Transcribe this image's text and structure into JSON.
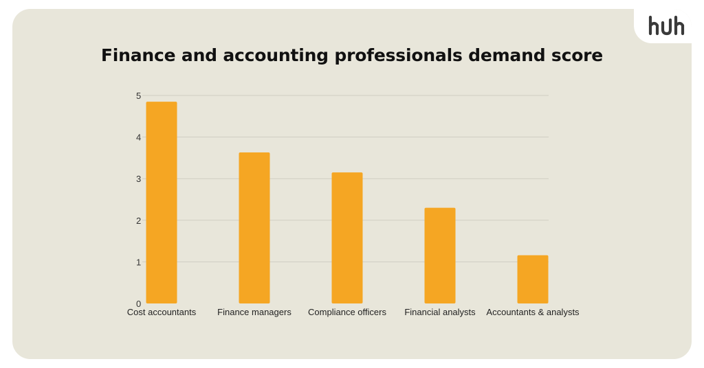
{
  "brand": {
    "logo_text": "hJh"
  },
  "colors": {
    "card_background": "#e8e6da",
    "bar": "#f5a623",
    "grid": "#cfcdc2",
    "title": "#111111"
  },
  "chart_data": {
    "type": "bar",
    "title": "Finance and accounting professionals demand score",
    "xlabel": "",
    "ylabel": "",
    "categories": [
      "Cost accountants",
      "Finance managers",
      "Compliance officers",
      "Financial analysts",
      "Accountants & analysts"
    ],
    "values": [
      4.85,
      3.63,
      3.15,
      2.3,
      1.16
    ],
    "ylim": [
      0,
      5
    ],
    "yticks": [
      "0",
      "1",
      "2",
      "3",
      "4",
      "5"
    ],
    "grid": true,
    "legend": "none"
  }
}
